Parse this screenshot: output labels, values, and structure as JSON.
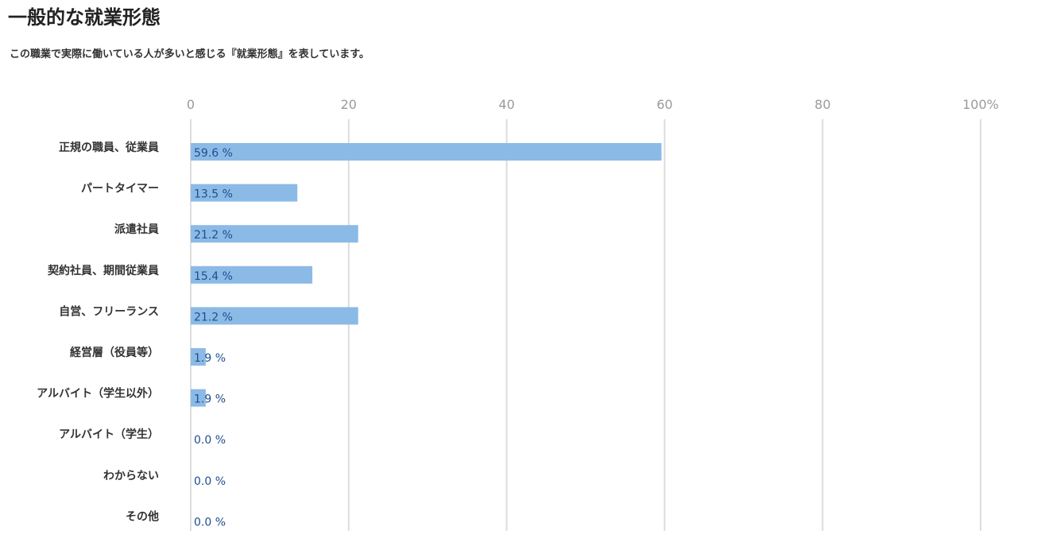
{
  "page": {
    "title": "一般的な就業形態",
    "subtitle": "この職業で実際に働いている人が多いと感じる『就業形態』を表しています。"
  },
  "colors": {
    "bar": "#8cbae6",
    "gridline": "#dddddd",
    "value_label": "#1d4f8f",
    "tick_label": "#9a9a9a"
  },
  "chart_data": {
    "type": "bar",
    "orientation": "horizontal",
    "title": "",
    "xlabel": "",
    "ylabel": "",
    "xlim": [
      0,
      100
    ],
    "tick_labels": [
      "0",
      "20",
      "40",
      "60",
      "80",
      "100%"
    ],
    "tick_values": [
      0,
      20,
      40,
      60,
      80,
      100
    ],
    "grid": true,
    "legend": "none",
    "categories": [
      "正規の職員、従業員",
      "パートタイマー",
      "派遣社員",
      "契約社員、期間従業員",
      "自営、フリーランス",
      "経営層（役員等）",
      "アルバイト（学生以外）",
      "アルバイト（学生）",
      "わからない",
      "その他"
    ],
    "values": [
      59.6,
      13.5,
      21.2,
      15.4,
      21.2,
      1.9,
      1.9,
      0.0,
      0.0,
      0.0
    ],
    "value_labels": [
      "59.6 %",
      "13.5 %",
      "21.2 %",
      "15.4 %",
      "21.2 %",
      "1.9 %",
      "1.9 %",
      "0.0 %",
      "0.0 %",
      "0.0 %"
    ]
  }
}
